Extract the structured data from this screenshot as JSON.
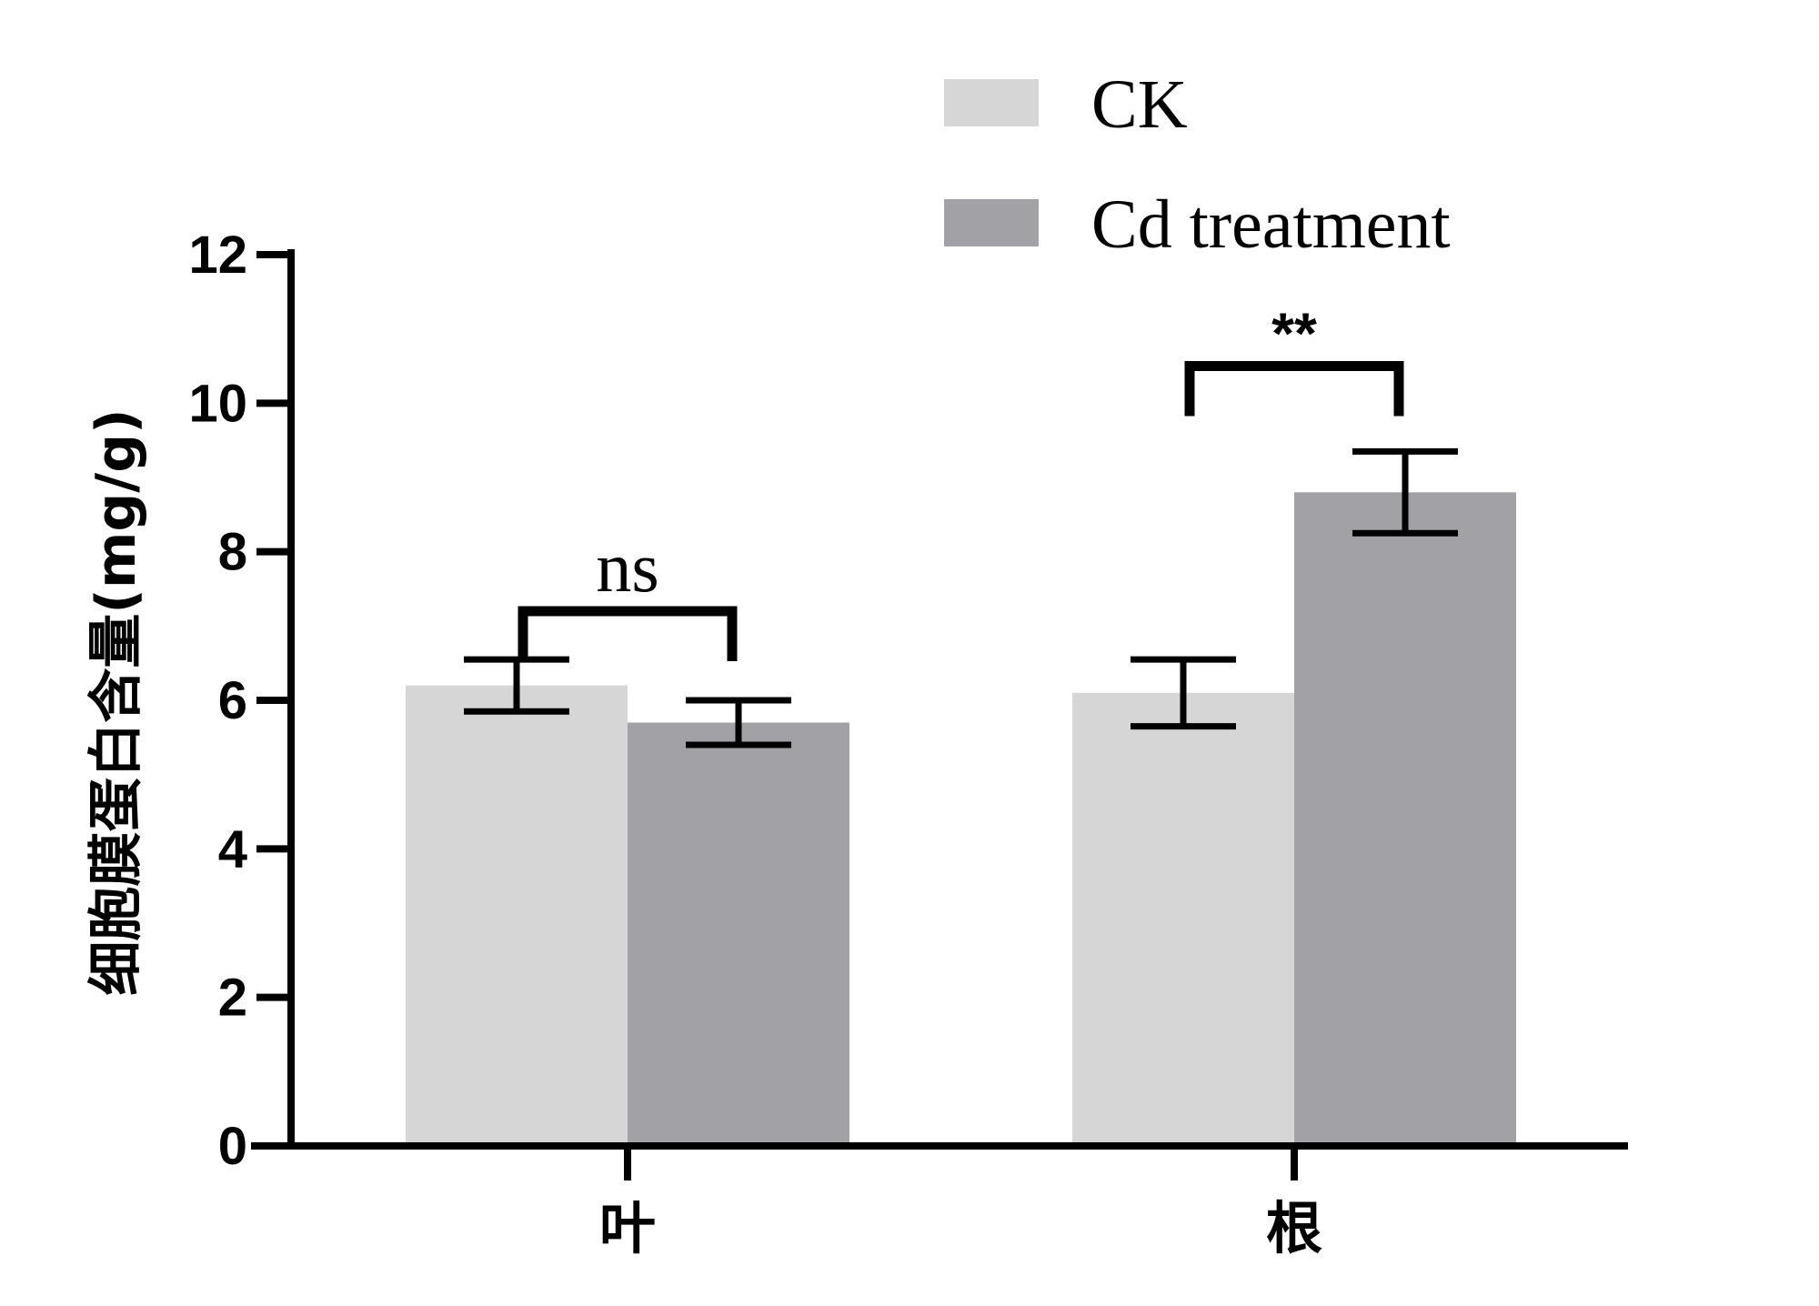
{
  "chart_data": {
    "type": "bar",
    "title": "",
    "xlabel": "",
    "ylabel": "细胞膜蛋白含量(mg/g)",
    "ylim": [
      0,
      12
    ],
    "yticks": [
      0,
      2,
      4,
      6,
      8,
      10,
      12
    ],
    "categories": [
      "叶",
      "根"
    ],
    "series": [
      {
        "name": "CK",
        "color": "#d6d6d6",
        "values": [
          6.2,
          6.1
        ],
        "errors": [
          0.35,
          0.45
        ]
      },
      {
        "name": "Cd treatment",
        "color": "#a2a2a6",
        "values": [
          5.7,
          8.8
        ],
        "errors": [
          0.3,
          0.55
        ]
      }
    ],
    "significance": [
      {
        "category_index": 0,
        "label": "ns",
        "bracket_y": 7.2
      },
      {
        "category_index": 1,
        "label": "**",
        "bracket_y": 10.5
      }
    ],
    "grid": false,
    "legend": "top-right"
  }
}
